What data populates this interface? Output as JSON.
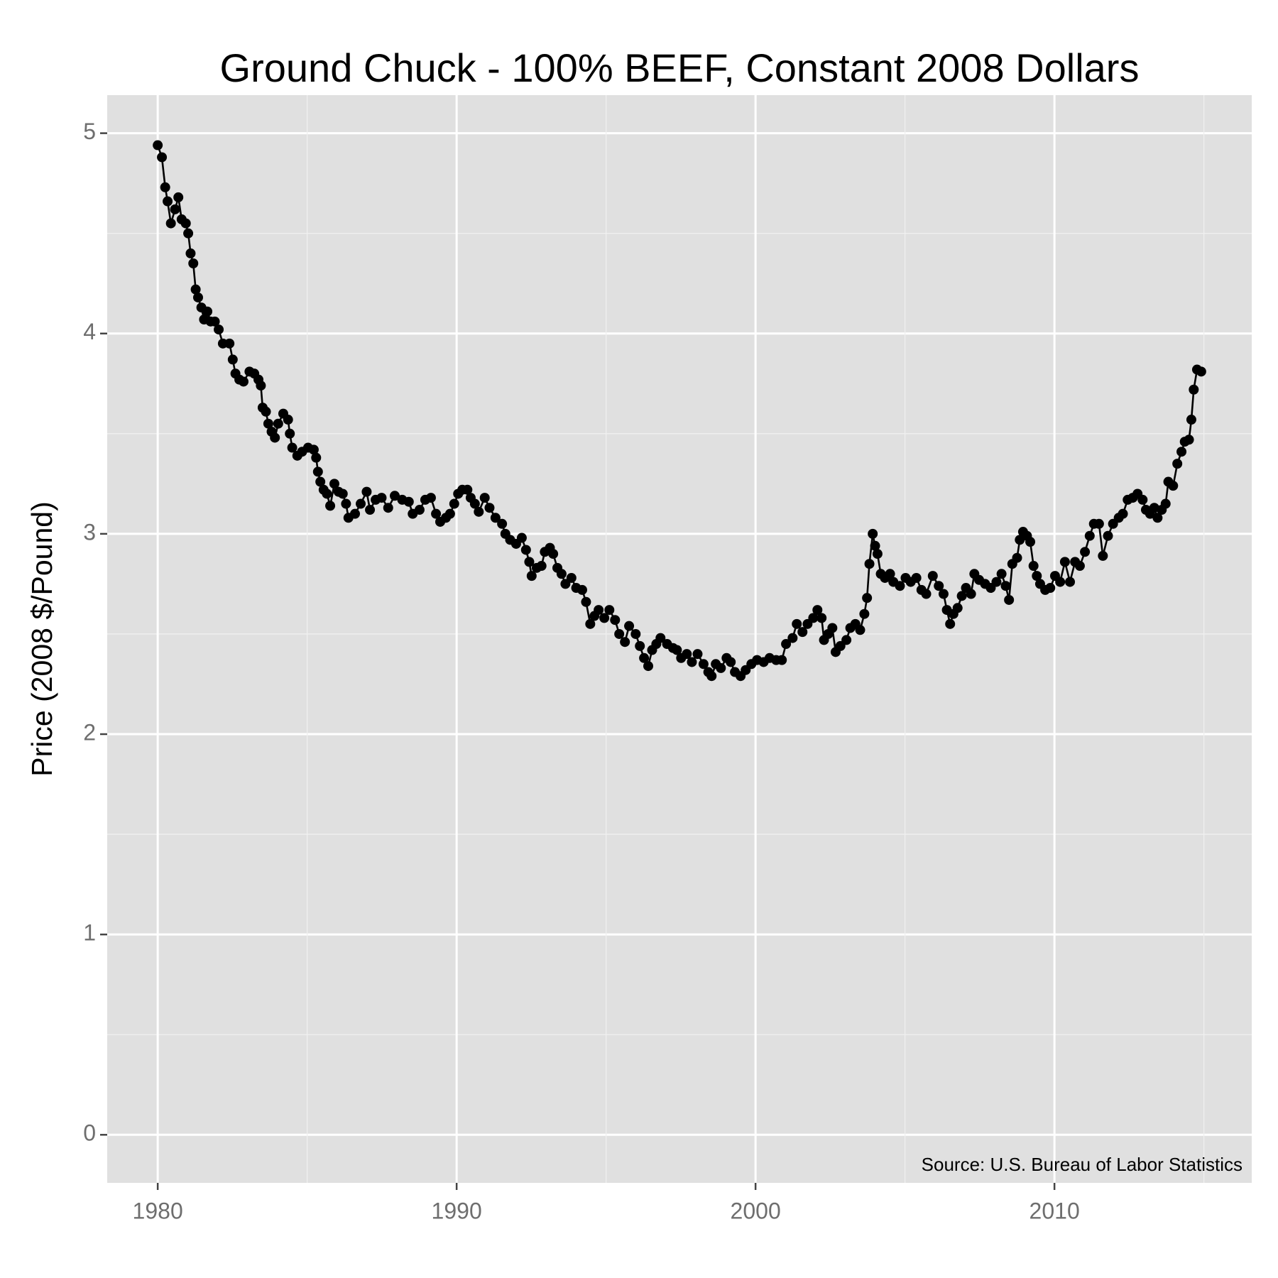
{
  "chart_data": {
    "type": "line",
    "title": "Ground Chuck - 100% BEEF, Constant 2008 Dollars",
    "y_label": "Price (2008 $/Pound)",
    "annotation": "Source:  U.S. Bureau of Labor Statistics",
    "color": "#000000",
    "markers": true,
    "grid": true,
    "xlim": [
      1978.31,
      2016.6
    ],
    "xticks": [
      1980,
      1990,
      2000,
      2010
    ],
    "ylim": [
      -0.24,
      5.19
    ],
    "yticks": [
      0,
      1,
      2,
      3,
      4,
      5
    ],
    "x": [
      1980.0,
      1980.14,
      1980.25,
      1980.33,
      1980.44,
      1980.58,
      1980.69,
      1980.8,
      1980.94,
      1981.02,
      1981.1,
      1981.19,
      1981.27,
      1981.35,
      1981.46,
      1981.55,
      1981.66,
      1981.77,
      1981.91,
      1982.04,
      1982.18,
      1982.4,
      1982.51,
      1982.6,
      1982.73,
      1982.87,
      1983.07,
      1983.23,
      1983.37,
      1983.45,
      1983.51,
      1983.62,
      1983.7,
      1983.81,
      1983.92,
      1984.03,
      1984.2,
      1984.36,
      1984.42,
      1984.5,
      1984.67,
      1984.83,
      1985.03,
      1985.22,
      1985.3,
      1985.36,
      1985.44,
      1985.55,
      1985.66,
      1985.77,
      1985.91,
      1986.05,
      1986.19,
      1986.3,
      1986.38,
      1986.6,
      1986.79,
      1986.99,
      1987.1,
      1987.29,
      1987.49,
      1987.71,
      1987.93,
      1988.18,
      1988.4,
      1988.53,
      1988.76,
      1988.95,
      1989.14,
      1989.31,
      1989.45,
      1989.64,
      1989.78,
      1989.92,
      1990.05,
      1990.19,
      1990.36,
      1990.47,
      1990.61,
      1990.74,
      1990.94,
      1991.1,
      1991.3,
      1991.52,
      1991.63,
      1991.79,
      1991.99,
      1992.18,
      1992.32,
      1992.43,
      1992.51,
      1992.68,
      1992.84,
      1992.95,
      1993.12,
      1993.23,
      1993.37,
      1993.51,
      1993.64,
      1993.84,
      1994.0,
      1994.2,
      1994.33,
      1994.47,
      1994.61,
      1994.75,
      1994.94,
      1995.11,
      1995.3,
      1995.44,
      1995.63,
      1995.77,
      1995.99,
      1996.13,
      1996.27,
      1996.41,
      1996.54,
      1996.68,
      1996.82,
      1997.04,
      1997.24,
      1997.37,
      1997.51,
      1997.7,
      1997.87,
      1998.06,
      1998.26,
      1998.42,
      1998.53,
      1998.67,
      1998.84,
      1999.03,
      1999.17,
      1999.31,
      1999.5,
      1999.67,
      1999.86,
      2000.05,
      2000.27,
      2000.47,
      2000.69,
      2000.88,
      2001.02,
      2001.24,
      2001.38,
      2001.57,
      2001.74,
      2001.93,
      2002.07,
      2002.21,
      2002.29,
      2002.43,
      2002.57,
      2002.68,
      2002.84,
      2003.04,
      2003.17,
      2003.34,
      2003.5,
      2003.64,
      2003.73,
      2003.81,
      2003.92,
      2004.0,
      2004.08,
      2004.19,
      2004.33,
      2004.5,
      2004.61,
      2004.83,
      2005.02,
      2005.19,
      2005.38,
      2005.55,
      2005.71,
      2005.93,
      2006.13,
      2006.29,
      2006.4,
      2006.51,
      2006.62,
      2006.76,
      2006.9,
      2007.04,
      2007.21,
      2007.32,
      2007.48,
      2007.68,
      2007.87,
      2008.06,
      2008.23,
      2008.37,
      2008.48,
      2008.59,
      2008.75,
      2008.84,
      2008.95,
      2009.08,
      2009.19,
      2009.3,
      2009.41,
      2009.52,
      2009.69,
      2009.86,
      2010.02,
      2010.19,
      2010.35,
      2010.52,
      2010.69,
      2010.85,
      2011.02,
      2011.18,
      2011.32,
      2011.49,
      2011.62,
      2011.79,
      2011.96,
      2012.15,
      2012.29,
      2012.45,
      2012.62,
      2012.78,
      2012.95,
      2013.06,
      2013.2,
      2013.34,
      2013.45,
      2013.59,
      2013.72,
      2013.81,
      2013.97,
      2014.11,
      2014.25,
      2014.36,
      2014.5,
      2014.58,
      2014.66,
      2014.77,
      2014.91
    ],
    "values": [
      4.94,
      4.88,
      4.73,
      4.66,
      4.55,
      4.62,
      4.68,
      4.57,
      4.55,
      4.5,
      4.4,
      4.35,
      4.22,
      4.18,
      4.13,
      4.07,
      4.11,
      4.06,
      4.06,
      4.02,
      3.95,
      3.95,
      3.87,
      3.8,
      3.77,
      3.76,
      3.81,
      3.8,
      3.77,
      3.74,
      3.63,
      3.61,
      3.55,
      3.51,
      3.48,
      3.55,
      3.6,
      3.57,
      3.5,
      3.43,
      3.39,
      3.41,
      3.43,
      3.42,
      3.38,
      3.31,
      3.26,
      3.22,
      3.2,
      3.14,
      3.25,
      3.21,
      3.2,
      3.15,
      3.08,
      3.1,
      3.15,
      3.21,
      3.12,
      3.17,
      3.18,
      3.13,
      3.19,
      3.17,
      3.16,
      3.1,
      3.12,
      3.17,
      3.18,
      3.1,
      3.06,
      3.08,
      3.1,
      3.15,
      3.2,
      3.22,
      3.22,
      3.18,
      3.15,
      3.11,
      3.18,
      3.13,
      3.08,
      3.05,
      3.0,
      2.97,
      2.95,
      2.98,
      2.92,
      2.86,
      2.79,
      2.83,
      2.84,
      2.91,
      2.93,
      2.9,
      2.83,
      2.8,
      2.75,
      2.78,
      2.73,
      2.72,
      2.66,
      2.55,
      2.59,
      2.62,
      2.58,
      2.62,
      2.57,
      2.5,
      2.46,
      2.54,
      2.5,
      2.44,
      2.38,
      2.34,
      2.42,
      2.45,
      2.48,
      2.45,
      2.43,
      2.42,
      2.38,
      2.4,
      2.36,
      2.4,
      2.35,
      2.31,
      2.29,
      2.35,
      2.33,
      2.38,
      2.36,
      2.31,
      2.29,
      2.32,
      2.35,
      2.37,
      2.36,
      2.38,
      2.37,
      2.37,
      2.45,
      2.48,
      2.55,
      2.51,
      2.55,
      2.58,
      2.62,
      2.58,
      2.47,
      2.5,
      2.53,
      2.41,
      2.44,
      2.47,
      2.53,
      2.55,
      2.52,
      2.6,
      2.68,
      2.85,
      3.0,
      2.94,
      2.9,
      2.8,
      2.78,
      2.8,
      2.76,
      2.74,
      2.78,
      2.76,
      2.78,
      2.72,
      2.7,
      2.79,
      2.74,
      2.7,
      2.62,
      2.55,
      2.6,
      2.63,
      2.69,
      2.73,
      2.7,
      2.8,
      2.77,
      2.75,
      2.73,
      2.76,
      2.8,
      2.74,
      2.67,
      2.85,
      2.88,
      2.97,
      3.01,
      2.99,
      2.96,
      2.84,
      2.79,
      2.75,
      2.72,
      2.73,
      2.79,
      2.76,
      2.86,
      2.76,
      2.86,
      2.84,
      2.91,
      2.99,
      3.05,
      3.05,
      2.89,
      2.99,
      3.05,
      3.08,
      3.1,
      3.17,
      3.18,
      3.2,
      3.17,
      3.12,
      3.1,
      3.13,
      3.08,
      3.12,
      3.15,
      3.26,
      3.24,
      3.35,
      3.41,
      3.46,
      3.47,
      3.57,
      3.72,
      3.82,
      3.81
    ]
  }
}
